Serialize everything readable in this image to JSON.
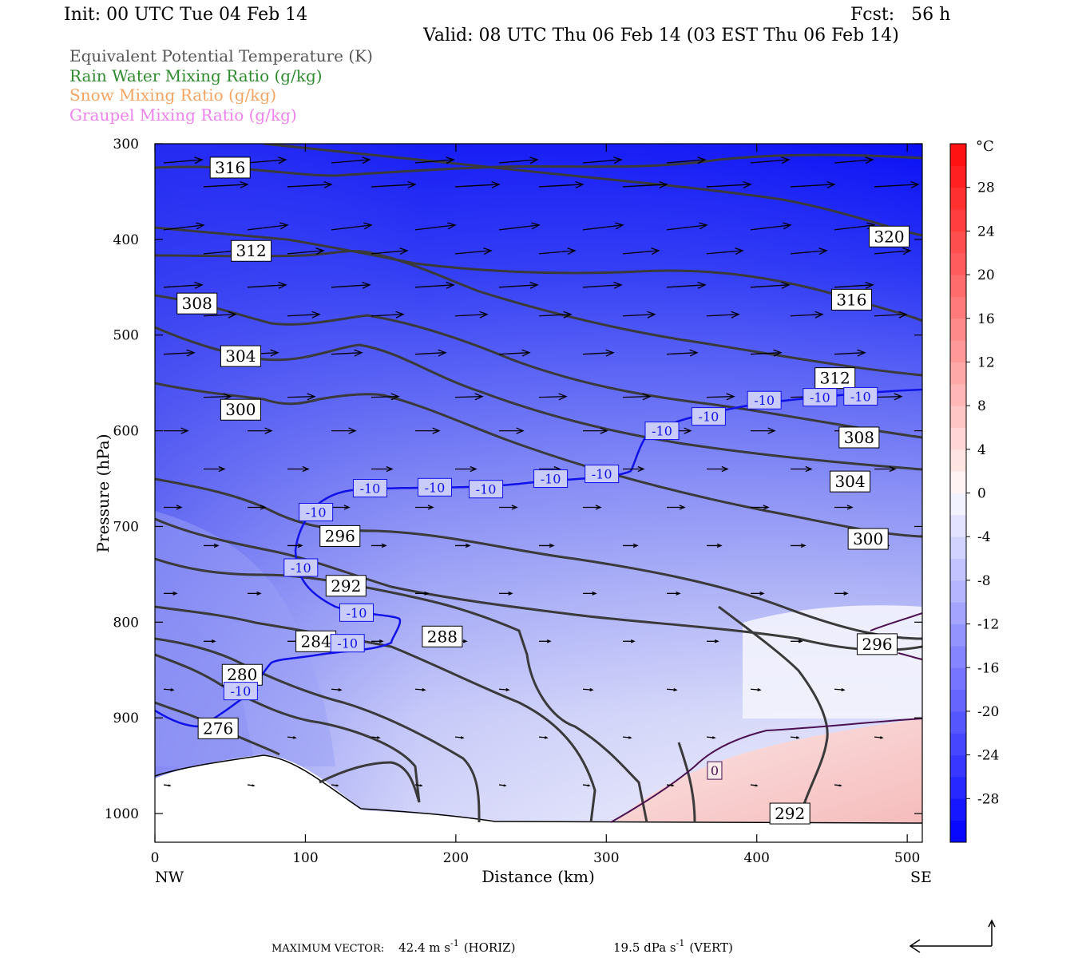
{
  "header": {
    "init": "Init: 00 UTC Tue 04 Feb 14",
    "fcst": "Fcst:   56 h",
    "valid": "Valid: 08 UTC Thu 06 Feb 14 (03 EST Thu 06 Feb 14)"
  },
  "legend": [
    {
      "text": "Equivalent Potential Temperature (K)",
      "color": "#555555"
    },
    {
      "text": "Rain Water Mixing Ratio (g/kg)",
      "color": "#2e8b2e"
    },
    {
      "text": "Snow Mixing Ratio (g/kg)",
      "color": "#f4a460"
    },
    {
      "text": "Graupel Mixing Ratio (g/kg)",
      "color": "#ee82ee"
    }
  ],
  "footer": {
    "max_vector_label": "MAXIMUM VECTOR:",
    "horiz_value": "42.4 m s",
    "horiz_unit_exp": "-1",
    "horiz_tag": "(HORIZ)",
    "vert_value": "19.5 dPa s",
    "vert_unit_exp": "-1",
    "vert_tag": "(VERT)"
  },
  "chart_data": {
    "type": "heatmap",
    "xlabel": "Distance (km)",
    "ylabel": "Pressure (hPa)",
    "xlim": [
      0,
      510
    ],
    "ylim": [
      1030,
      300
    ],
    "x_ticks": [
      0,
      100,
      200,
      300,
      400,
      500
    ],
    "y_ticks": [
      300,
      400,
      500,
      600,
      700,
      800,
      900,
      1000
    ],
    "x_endpoint_labels": [
      "NW",
      "SE"
    ],
    "colorbar": {
      "unit": "°C",
      "ticks": [
        28,
        24,
        20,
        16,
        12,
        8,
        4,
        0,
        -4,
        -8,
        -12,
        -16,
        -20,
        -24,
        -28
      ],
      "range": [
        -32,
        32
      ]
    },
    "theta_e_labels": [
      {
        "value": "316",
        "x": 50,
        "p": 325
      },
      {
        "value": "312",
        "x": 64,
        "p": 412
      },
      {
        "value": "308",
        "x": 28,
        "p": 467
      },
      {
        "value": "304",
        "x": 57,
        "p": 522
      },
      {
        "value": "300",
        "x": 57,
        "p": 578
      },
      {
        "value": "296",
        "x": 123,
        "p": 710
      },
      {
        "value": "292",
        "x": 127,
        "p": 762
      },
      {
        "value": "288",
        "x": 191,
        "p": 815
      },
      {
        "value": "284",
        "x": 107,
        "p": 820
      },
      {
        "value": "280",
        "x": 58,
        "p": 855
      },
      {
        "value": "276",
        "x": 42,
        "p": 911
      },
      {
        "value": "320",
        "x": 488,
        "p": 397
      },
      {
        "value": "316",
        "x": 463,
        "p": 463
      },
      {
        "value": "312",
        "x": 452,
        "p": 545
      },
      {
        "value": "308",
        "x": 468,
        "p": 607
      },
      {
        "value": "304",
        "x": 462,
        "p": 653
      },
      {
        "value": "300",
        "x": 474,
        "p": 713
      },
      {
        "value": "296",
        "x": 480,
        "p": 823
      },
      {
        "value": "292",
        "x": 422,
        "p": 1000
      }
    ],
    "isotherm_labels": [
      {
        "value": "-10",
        "x": 107,
        "p": 685
      },
      {
        "value": "-10",
        "x": 143,
        "p": 660
      },
      {
        "value": "-10",
        "x": 186,
        "p": 659
      },
      {
        "value": "-10",
        "x": 220,
        "p": 661
      },
      {
        "value": "-10",
        "x": 263,
        "p": 650
      },
      {
        "value": "-10",
        "x": 297,
        "p": 645
      },
      {
        "value": "-10",
        "x": 337,
        "p": 600
      },
      {
        "value": "-10",
        "x": 368,
        "p": 585
      },
      {
        "value": "-10",
        "x": 405,
        "p": 568
      },
      {
        "value": "-10",
        "x": 442,
        "p": 565
      },
      {
        "value": "-10",
        "x": 469,
        "p": 564
      },
      {
        "value": "-10",
        "x": 97,
        "p": 743
      },
      {
        "value": "-10",
        "x": 134,
        "p": 790
      },
      {
        "value": "-10",
        "x": 128,
        "p": 822
      },
      {
        "value": "-10",
        "x": 57,
        "p": 872
      },
      {
        "value": "0",
        "x": 372,
        "p": 955
      }
    ]
  }
}
